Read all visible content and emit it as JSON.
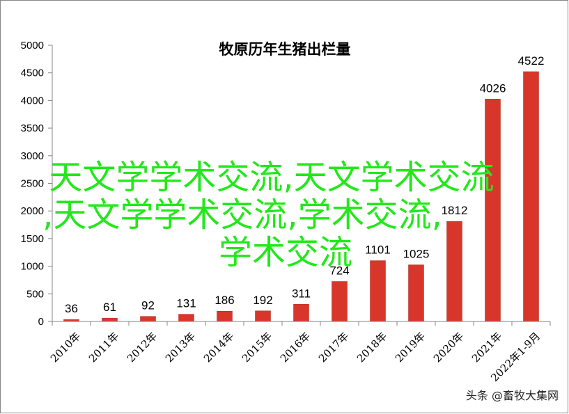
{
  "chart_data": {
    "type": "bar",
    "title": "牧原历年生猪出栏量",
    "categories": [
      "2010年",
      "2011年",
      "2012年",
      "2013年",
      "2014年",
      "2015年",
      "2016年",
      "2017年",
      "2018年",
      "2019年",
      "2020年",
      "2021年",
      "2022年1-9月"
    ],
    "values": [
      36,
      61,
      92,
      131,
      186,
      192,
      311,
      724,
      1101,
      1025,
      1812,
      4026,
      4522
    ],
    "data_labels": [
      "36",
      "61",
      "92",
      "131",
      "186",
      "192",
      "311",
      "724",
      "1101",
      "1025",
      "1812",
      "4026",
      "4522"
    ],
    "xlabel": "",
    "ylabel": "",
    "ylim": [
      0,
      5000
    ],
    "yticks": [
      0,
      500,
      1000,
      1500,
      2000,
      2500,
      3000,
      3500,
      4000,
      4500,
      5000
    ],
    "ytick_labels": [
      "0",
      "500",
      "1000",
      "1500",
      "2000",
      "2500",
      "3000",
      "3500",
      "4000",
      "4500",
      "5000"
    ],
    "grid": false,
    "legend": "none",
    "bar_color": "#d9362b"
  },
  "overlay_text": {
    "line1": "天文学学术交流,天文学术交流",
    "line2": ",天文学学术交流,学术交流,",
    "line3": "学术交流",
    "color": "#22e81a"
  },
  "watermark": "头条 @畜牧大集网"
}
